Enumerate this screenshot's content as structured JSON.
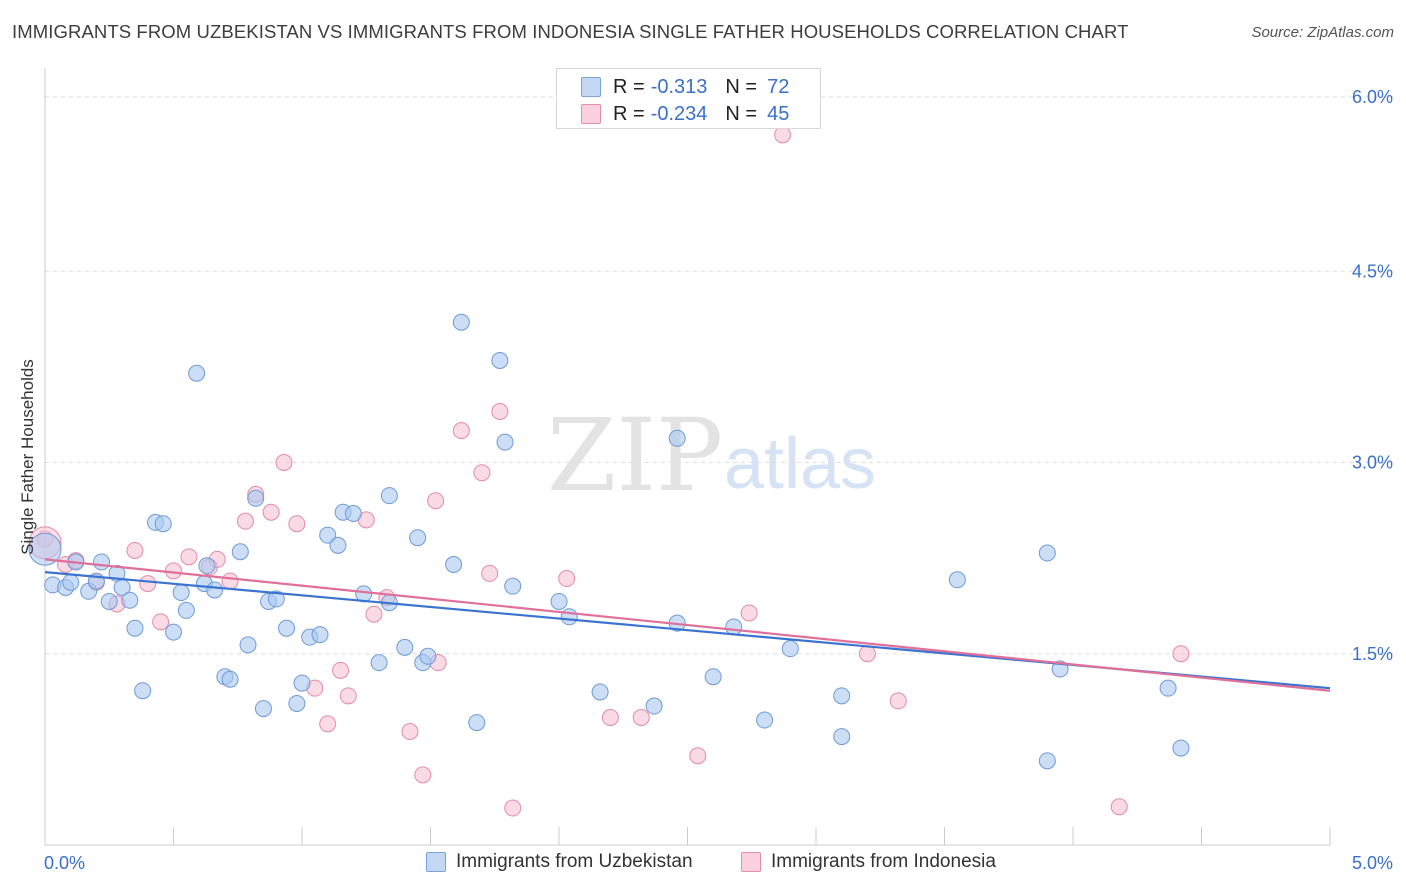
{
  "title": "IMMIGRANTS FROM UZBEKISTAN VS IMMIGRANTS FROM INDONESIA SINGLE FATHER HOUSEHOLDS CORRELATION CHART",
  "source": "Source: ZipAtlas.com",
  "watermark": {
    "zip": "ZIP",
    "atlas": "atlas"
  },
  "colors": {
    "blue_fill": "#a9c8f0",
    "blue_stroke": "#6f9ad8",
    "blue_line": "#3a74d0",
    "pink_fill": "#f7c3d3",
    "pink_stroke": "#e58aa8",
    "pink_line": "#e0709a",
    "tick_label": "#3a6fcc",
    "grid": "#dddddd"
  },
  "legend": {
    "rows": [
      {
        "r_label": "R =",
        "r_value": "-0.313",
        "n_label": "N =",
        "n_value": "72",
        "color": "blue"
      },
      {
        "r_label": "R =",
        "r_value": "-0.234",
        "n_label": "N =",
        "n_value": "45",
        "color": "pink"
      }
    ]
  },
  "bottom_legend": {
    "blue_label": "Immigrants from Uzbekistan",
    "pink_label": "Immigrants from Indonesia"
  },
  "chart_data": {
    "type": "scatter",
    "title": "IMMIGRANTS FROM UZBEKISTAN VS IMMIGRANTS FROM INDONESIA SINGLE FATHER HOUSEHOLDS CORRELATION CHART",
    "xlabel": "",
    "ylabel": "Single Father Households",
    "xlim": [
      0,
      5
    ],
    "ylim": [
      0,
      6
    ],
    "x_tick_labels": [
      "0.0%",
      "5.0%"
    ],
    "y_ticks": [
      1.5,
      3.0,
      4.5,
      6.0
    ],
    "y_tick_labels": [
      "1.5%",
      "3.0%",
      "4.5%",
      "6.0%"
    ],
    "grid": true,
    "legend_position": "top-center",
    "series": [
      {
        "name": "Immigrants from Uzbekistan",
        "color": "blue",
        "trend": {
          "x": [
            0,
            5
          ],
          "y": [
            2.14,
            1.23
          ]
        },
        "points": [
          [
            0.03,
            2.04
          ],
          [
            0.08,
            2.02
          ],
          [
            0.12,
            2.22
          ],
          [
            0.1,
            2.06
          ],
          [
            0.17,
            1.99
          ],
          [
            0.2,
            2.07
          ],
          [
            0.22,
            2.22
          ],
          [
            0.25,
            1.91
          ],
          [
            0.28,
            2.13
          ],
          [
            0.3,
            2.02
          ],
          [
            0.33,
            1.92
          ],
          [
            0.35,
            1.7
          ],
          [
            0.38,
            1.21
          ],
          [
            0.43,
            2.53
          ],
          [
            0.46,
            2.52
          ],
          [
            0.5,
            1.67
          ],
          [
            0.53,
            1.98
          ],
          [
            0.55,
            1.84
          ],
          [
            0.59,
            3.7
          ],
          [
            0.62,
            2.05
          ],
          [
            0.63,
            2.19
          ],
          [
            0.66,
            2.0
          ],
          [
            0.7,
            1.32
          ],
          [
            0.72,
            1.3
          ],
          [
            0.76,
            2.3
          ],
          [
            0.79,
            1.57
          ],
          [
            0.82,
            2.72
          ],
          [
            0.85,
            1.07
          ],
          [
            0.87,
            1.91
          ],
          [
            0.9,
            1.93
          ],
          [
            0.94,
            1.7
          ],
          [
            0.98,
            1.11
          ],
          [
            1.0,
            1.27
          ],
          [
            1.03,
            1.63
          ],
          [
            1.07,
            1.65
          ],
          [
            1.1,
            2.43
          ],
          [
            1.14,
            2.35
          ],
          [
            1.16,
            2.61
          ],
          [
            1.2,
            2.6
          ],
          [
            1.24,
            1.97
          ],
          [
            1.3,
            1.43
          ],
          [
            1.34,
            2.74
          ],
          [
            1.4,
            1.55
          ],
          [
            1.34,
            1.9
          ],
          [
            1.45,
            2.41
          ],
          [
            1.47,
            1.43
          ],
          [
            1.49,
            1.48
          ],
          [
            1.59,
            2.2
          ],
          [
            1.62,
            4.1
          ],
          [
            1.68,
            0.96
          ],
          [
            1.77,
            3.8
          ],
          [
            1.79,
            3.16
          ],
          [
            1.82,
            2.03
          ],
          [
            2.0,
            1.91
          ],
          [
            2.04,
            1.79
          ],
          [
            2.16,
            1.2
          ],
          [
            2.37,
            1.09
          ],
          [
            2.46,
            3.19
          ],
          [
            2.46,
            1.74
          ],
          [
            2.6,
            1.32
          ],
          [
            2.68,
            1.71
          ],
          [
            2.8,
            0.98
          ],
          [
            2.9,
            1.54
          ],
          [
            3.1,
            1.17
          ],
          [
            3.1,
            0.85
          ],
          [
            3.55,
            2.08
          ],
          [
            3.9,
            2.29
          ],
          [
            3.95,
            1.38
          ],
          [
            3.9,
            0.66
          ],
          [
            4.37,
            1.23
          ],
          [
            4.42,
            0.76
          ],
          [
            0.0,
            2.32
          ]
        ]
      },
      {
        "name": "Immigrants from Indonesia",
        "color": "pink",
        "trend": {
          "x": [
            0,
            5
          ],
          "y": [
            2.24,
            1.21
          ]
        },
        "points": [
          [
            0.0,
            2.4
          ],
          [
            0.08,
            2.2
          ],
          [
            0.12,
            2.23
          ],
          [
            0.2,
            2.06
          ],
          [
            0.28,
            1.89
          ],
          [
            0.35,
            2.31
          ],
          [
            0.4,
            2.05
          ],
          [
            0.45,
            1.75
          ],
          [
            0.5,
            2.15
          ],
          [
            0.56,
            2.26
          ],
          [
            0.64,
            2.18
          ],
          [
            0.67,
            2.24
          ],
          [
            0.72,
            2.07
          ],
          [
            0.78,
            2.54
          ],
          [
            0.82,
            2.75
          ],
          [
            0.88,
            2.61
          ],
          [
            0.93,
            3.0
          ],
          [
            0.98,
            2.52
          ],
          [
            1.05,
            1.23
          ],
          [
            1.1,
            0.95
          ],
          [
            1.15,
            1.37
          ],
          [
            1.18,
            1.17
          ],
          [
            1.25,
            2.55
          ],
          [
            1.28,
            1.81
          ],
          [
            1.33,
            1.94
          ],
          [
            1.42,
            0.89
          ],
          [
            1.47,
            0.55
          ],
          [
            1.52,
            2.7
          ],
          [
            1.53,
            1.43
          ],
          [
            1.62,
            3.25
          ],
          [
            1.7,
            2.92
          ],
          [
            1.73,
            2.13
          ],
          [
            1.77,
            3.4
          ],
          [
            1.82,
            0.29
          ],
          [
            2.03,
            2.09
          ],
          [
            2.2,
            1.0
          ],
          [
            2.32,
            1.0
          ],
          [
            2.54,
            0.7
          ],
          [
            2.74,
            1.82
          ],
          [
            2.87,
            5.57
          ],
          [
            3.2,
            1.5
          ],
          [
            3.32,
            1.13
          ],
          [
            4.18,
            0.3
          ],
          [
            4.42,
            1.5
          ],
          [
            0.0,
            2.37
          ]
        ]
      }
    ]
  }
}
